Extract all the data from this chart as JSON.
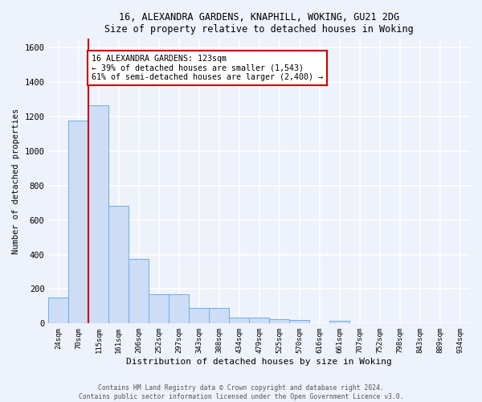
{
  "title1": "16, ALEXANDRA GARDENS, KNAPHILL, WOKING, GU21 2DG",
  "title2": "Size of property relative to detached houses in Woking",
  "xlabel": "Distribution of detached houses by size in Woking",
  "ylabel": "Number of detached properties",
  "bar_categories": [
    "24sqm",
    "70sqm",
    "115sqm",
    "161sqm",
    "206sqm",
    "252sqm",
    "297sqm",
    "343sqm",
    "388sqm",
    "434sqm",
    "479sqm",
    "525sqm",
    "570sqm",
    "616sqm",
    "661sqm",
    "707sqm",
    "752sqm",
    "798sqm",
    "843sqm",
    "889sqm",
    "934sqm"
  ],
  "bar_heights": [
    150,
    1175,
    1265,
    680,
    375,
    170,
    170,
    90,
    90,
    35,
    35,
    25,
    20,
    0,
    15,
    0,
    0,
    0,
    0,
    0,
    0
  ],
  "bar_color": "#ccddf5",
  "bar_edgecolor": "#6aaee8",
  "ylim": [
    0,
    1650
  ],
  "yticks": [
    0,
    200,
    400,
    600,
    800,
    1000,
    1200,
    1400,
    1600
  ],
  "property_line_x": 1.5,
  "property_line_color": "#cc0000",
  "annotation_text": "16 ALEXANDRA GARDENS: 123sqm\n← 39% of detached houses are smaller (1,543)\n61% of semi-detached houses are larger (2,400) →",
  "annotation_box_color": "#ffffff",
  "annotation_box_edgecolor": "#cc0000",
  "bg_color": "#edf2fb",
  "grid_color": "#ffffff",
  "footer1": "Contains HM Land Registry data © Crown copyright and database right 2024.",
  "footer2": "Contains public sector information licensed under the Open Government Licence v3.0."
}
